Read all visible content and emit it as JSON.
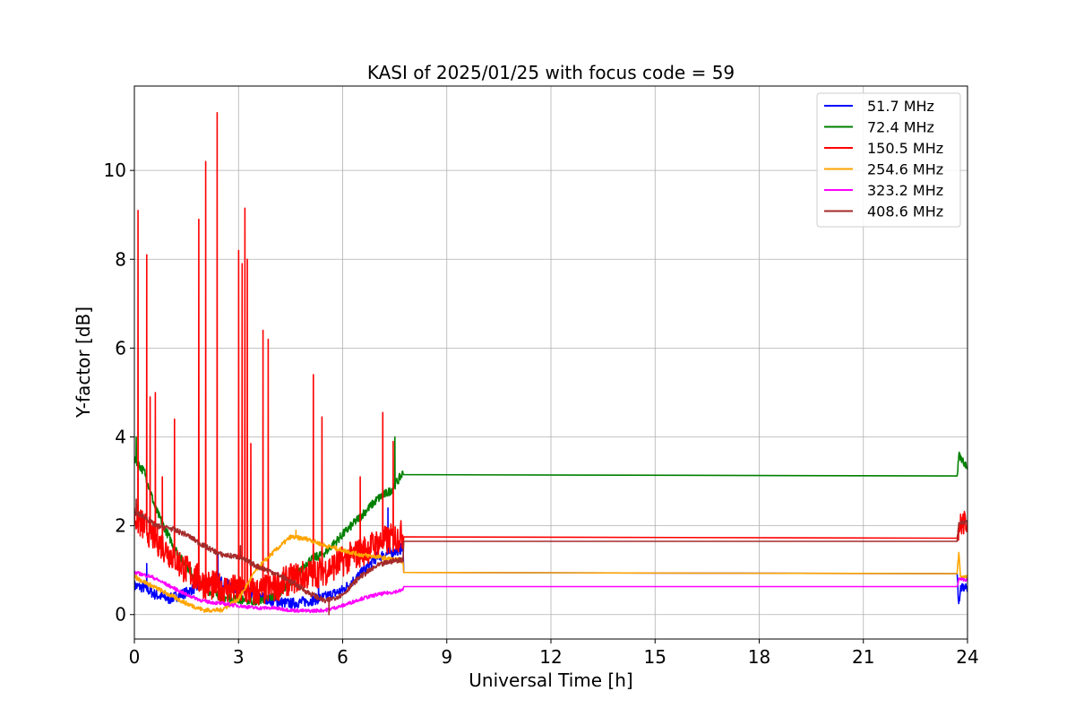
{
  "chart_data": {
    "type": "line",
    "title": "KASI of 2025/01/25 with focus code = 59",
    "xlabel": "Universal Time [h]",
    "ylabel": "Y-factor [dB]",
    "xlim": [
      0,
      24
    ],
    "ylim": [
      -0.55,
      11.9
    ],
    "xticks": [
      0,
      3,
      6,
      9,
      12,
      15,
      18,
      21,
      24
    ],
    "yticks": [
      0,
      2,
      4,
      6,
      8,
      10
    ],
    "grid": true,
    "legend_position": "top-right",
    "series": [
      {
        "name": " 51.7 MHz",
        "color": "#0000ff",
        "points": [
          [
            0,
            0.65
          ],
          [
            0.3,
            0.6
          ],
          [
            0.6,
            0.45
          ],
          [
            1.0,
            0.35
          ],
          [
            1.5,
            0.5
          ],
          [
            2.0,
            0.7
          ],
          [
            2.5,
            0.75
          ],
          [
            3.0,
            0.55
          ],
          [
            3.5,
            0.45
          ],
          [
            4.0,
            0.3
          ],
          [
            4.5,
            0.25
          ],
          [
            5.0,
            0.3
          ],
          [
            5.5,
            0.4
          ],
          [
            6.0,
            0.55
          ],
          [
            6.5,
            0.9
          ],
          [
            7.0,
            1.3
          ],
          [
            7.4,
            1.4
          ],
          [
            7.75,
            1.5
          ],
          [
            7.76,
            0.95
          ],
          [
            23.7,
            0.92
          ],
          [
            23.75,
            0.25
          ],
          [
            23.8,
            0.6
          ],
          [
            24,
            0.6
          ]
        ],
        "spikes": [
          [
            0.35,
            1.15
          ],
          [
            2.4,
            1.4
          ],
          [
            5.3,
            0.9
          ],
          [
            7.3,
            2.4
          ]
        ]
      },
      {
        "name": " 72.4 MHz",
        "color": "#008000",
        "points": [
          [
            0,
            3.5
          ],
          [
            0.3,
            3.2
          ],
          [
            0.6,
            2.4
          ],
          [
            0.9,
            1.9
          ],
          [
            1.3,
            1.3
          ],
          [
            1.7,
            0.9
          ],
          [
            2.1,
            0.55
          ],
          [
            2.5,
            0.4
          ],
          [
            3.0,
            0.35
          ],
          [
            3.5,
            0.3
          ],
          [
            4.0,
            0.4
          ],
          [
            4.5,
            0.7
          ],
          [
            5.0,
            1.2
          ],
          [
            5.5,
            1.4
          ],
          [
            6.0,
            1.8
          ],
          [
            6.5,
            2.2
          ],
          [
            7.0,
            2.6
          ],
          [
            7.4,
            2.8
          ],
          [
            7.75,
            3.2
          ],
          [
            7.76,
            3.15
          ],
          [
            23.7,
            3.12
          ],
          [
            23.75,
            3.6
          ],
          [
            24,
            3.3
          ]
        ],
        "spikes": [
          [
            0.05,
            4.0
          ],
          [
            7.5,
            4.0
          ]
        ]
      },
      {
        "name": " 150.5 MHz",
        "color": "#ff0000",
        "points": [
          [
            0,
            2.2
          ],
          [
            0.5,
            1.8
          ],
          [
            1.0,
            1.4
          ],
          [
            1.5,
            1.0
          ],
          [
            2.0,
            0.7
          ],
          [
            2.5,
            0.6
          ],
          [
            3.0,
            0.55
          ],
          [
            3.5,
            0.5
          ],
          [
            4.0,
            0.6
          ],
          [
            4.5,
            0.8
          ],
          [
            5.0,
            0.9
          ],
          [
            5.5,
            1.0
          ],
          [
            6.0,
            1.2
          ],
          [
            6.5,
            1.4
          ],
          [
            7.0,
            1.6
          ],
          [
            7.4,
            1.7
          ],
          [
            7.75,
            1.8
          ],
          [
            7.76,
            1.75
          ],
          [
            23.7,
            1.72
          ],
          [
            23.75,
            2.0
          ],
          [
            24,
            2.1
          ]
        ],
        "spikes": [
          [
            0.1,
            9.1
          ],
          [
            0.35,
            8.1
          ],
          [
            0.45,
            4.9
          ],
          [
            0.6,
            5.0
          ],
          [
            0.8,
            3.1
          ],
          [
            1.15,
            4.4
          ],
          [
            1.85,
            8.9
          ],
          [
            2.05,
            10.2
          ],
          [
            2.38,
            11.3
          ],
          [
            3.0,
            8.2
          ],
          [
            3.1,
            7.9
          ],
          [
            3.18,
            9.15
          ],
          [
            3.25,
            8.0
          ],
          [
            3.35,
            3.85
          ],
          [
            3.7,
            6.4
          ],
          [
            3.85,
            6.2
          ],
          [
            5.15,
            5.4
          ],
          [
            5.4,
            4.45
          ],
          [
            6.5,
            3.1
          ],
          [
            7.15,
            4.55
          ],
          [
            7.45,
            3.9
          ]
        ]
      },
      {
        "name": " 254.6 MHz",
        "color": "#ffa500",
        "points": [
          [
            0,
            0.85
          ],
          [
            0.5,
            0.65
          ],
          [
            1.0,
            0.45
          ],
          [
            1.5,
            0.25
          ],
          [
            2.0,
            0.1
          ],
          [
            2.5,
            0.1
          ],
          [
            3.0,
            0.35
          ],
          [
            3.5,
            1.0
          ],
          [
            4.0,
            1.4
          ],
          [
            4.5,
            1.75
          ],
          [
            5.0,
            1.7
          ],
          [
            5.5,
            1.55
          ],
          [
            6.0,
            1.45
          ],
          [
            6.5,
            1.35
          ],
          [
            7.0,
            1.3
          ],
          [
            7.4,
            1.25
          ],
          [
            7.75,
            1.2
          ],
          [
            7.76,
            0.95
          ],
          [
            23.7,
            0.92
          ],
          [
            23.75,
            1.4
          ],
          [
            23.8,
            0.85
          ],
          [
            24,
            0.85
          ]
        ],
        "spikes": [
          [
            4.65,
            1.9
          ]
        ]
      },
      {
        "name": " 323.2 MHz",
        "color": "#ff00ff",
        "points": [
          [
            0,
            0.95
          ],
          [
            0.5,
            0.85
          ],
          [
            1.0,
            0.65
          ],
          [
            1.5,
            0.45
          ],
          [
            2.0,
            0.3
          ],
          [
            2.5,
            0.25
          ],
          [
            3.0,
            0.2
          ],
          [
            3.5,
            0.15
          ],
          [
            4.0,
            0.15
          ],
          [
            4.5,
            0.1
          ],
          [
            5.0,
            0.08
          ],
          [
            5.5,
            0.1
          ],
          [
            6.0,
            0.2
          ],
          [
            6.5,
            0.35
          ],
          [
            7.0,
            0.45
          ],
          [
            7.4,
            0.5
          ],
          [
            7.75,
            0.55
          ],
          [
            7.76,
            0.63
          ],
          [
            23.7,
            0.63
          ],
          [
            23.75,
            0.8
          ],
          [
            24,
            0.78
          ]
        ],
        "spikes": []
      },
      {
        "name": " 408.6 MHz",
        "color": "#a52a2a",
        "points": [
          [
            0,
            2.3
          ],
          [
            0.3,
            2.2
          ],
          [
            0.6,
            2.0
          ],
          [
            1.0,
            1.95
          ],
          [
            1.5,
            1.8
          ],
          [
            2.0,
            1.55
          ],
          [
            2.5,
            1.35
          ],
          [
            3.0,
            1.3
          ],
          [
            3.5,
            1.1
          ],
          [
            4.0,
            0.95
          ],
          [
            4.5,
            0.75
          ],
          [
            5.0,
            0.5
          ],
          [
            5.5,
            0.3
          ],
          [
            6.0,
            0.45
          ],
          [
            6.5,
            0.85
          ],
          [
            7.0,
            1.1
          ],
          [
            7.4,
            1.2
          ],
          [
            7.75,
            1.25
          ],
          [
            7.76,
            1.65
          ],
          [
            23.7,
            1.65
          ],
          [
            23.75,
            2.05
          ],
          [
            24,
            2.1
          ]
        ],
        "spikes": [
          [
            0.05,
            2.6
          ],
          [
            3.05,
            1.55
          ],
          [
            5.6,
            0.0
          ]
        ]
      }
    ]
  }
}
